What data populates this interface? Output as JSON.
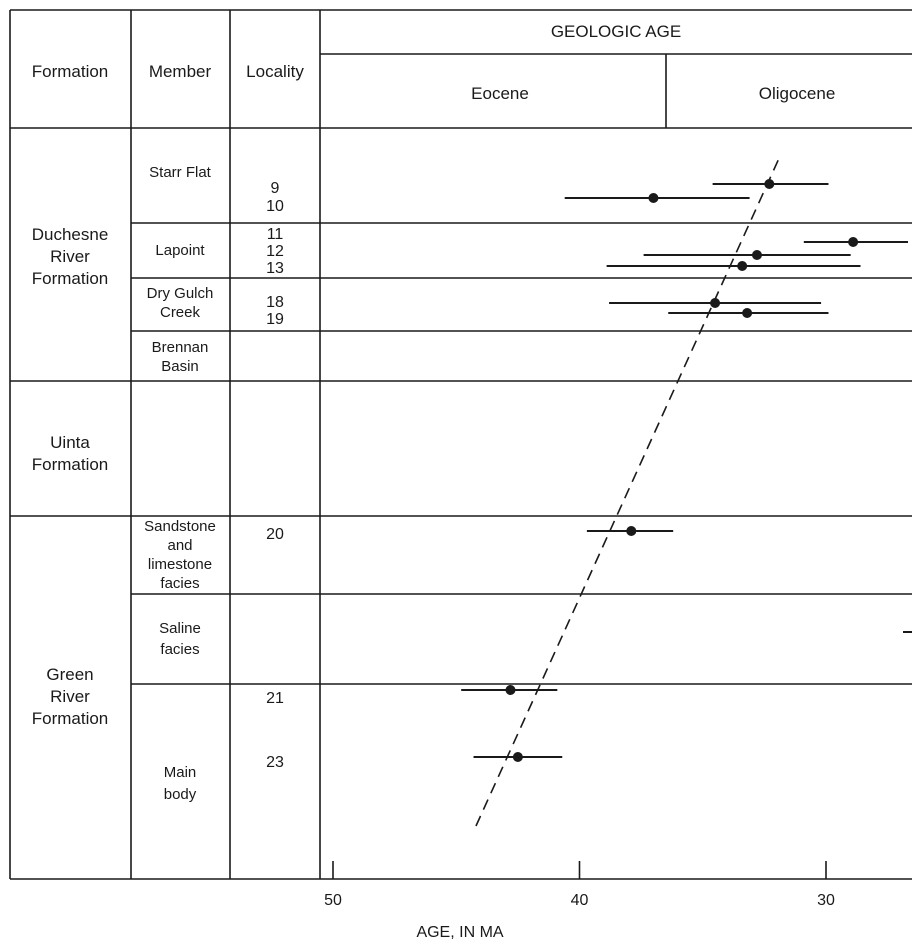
{
  "table": {
    "col_formation": "Formation",
    "col_member": "Member",
    "col_locality": "Locality",
    "geologic_age": "GEOLOGIC AGE",
    "epoch_eocene": "Eocene",
    "epoch_oligocene": "Oligocene",
    "formations": [
      {
        "lines": [
          "Duchesne",
          "River",
          "Formation"
        ]
      },
      {
        "lines": [
          "Uinta",
          "Formation"
        ]
      },
      {
        "lines": [
          "Green",
          "River",
          "Formation"
        ]
      }
    ],
    "members": [
      {
        "lines": [
          "Starr Flat"
        ]
      },
      {
        "lines": [
          "Lapoint"
        ]
      },
      {
        "lines": [
          "Dry Gulch",
          "Creek"
        ]
      },
      {
        "lines": [
          "Brennan",
          "Basin"
        ]
      },
      {
        "lines": [
          "Sandstone",
          "and",
          "limestone",
          "facies"
        ]
      },
      {
        "lines": [
          "Saline",
          "facies"
        ]
      },
      {
        "lines": [
          "Main",
          "body"
        ]
      }
    ],
    "localities": [
      "9",
      "10",
      "11",
      "12",
      "13",
      "18",
      "19",
      "20",
      "21",
      "23"
    ]
  },
  "chart_data": {
    "type": "scatter",
    "xlabel": "AGE, IN MA",
    "xlim": [
      51,
      26.5
    ],
    "xticks": [
      50,
      40,
      30
    ],
    "tick_labels": [
      "50",
      "40",
      "30"
    ],
    "series": [
      {
        "points": [
          {
            "locality": "9",
            "age": 32.3,
            "err_low": 29.9,
            "err_high": 34.6
          },
          {
            "locality": "10",
            "age": 37.0,
            "err_low": 33.1,
            "err_high": 40.6
          },
          {
            "locality": "11",
            "age": 28.9,
            "err_low": 26.6,
            "err_high": 30.9
          },
          {
            "locality": "12",
            "age": 32.8,
            "err_low": 29.0,
            "err_high": 37.4
          },
          {
            "locality": "13",
            "age": 33.4,
            "err_low": 28.6,
            "err_high": 38.9
          },
          {
            "locality": "18",
            "age": 34.5,
            "err_low": 30.2,
            "err_high": 38.8
          },
          {
            "locality": "19",
            "age": 33.2,
            "err_low": 29.9,
            "err_high": 36.4
          },
          {
            "locality": "20",
            "age": 37.9,
            "err_low": 36.2,
            "err_high": 39.7
          },
          {
            "locality": "21",
            "age": 42.8,
            "err_low": 40.9,
            "err_high": 44.8
          },
          {
            "locality": "23",
            "age": 42.5,
            "err_low": 40.7,
            "err_high": 44.3
          }
        ]
      }
    ],
    "trend_line": {
      "style": "dashed",
      "from_age": 44.2,
      "to_age": 31.9
    },
    "grid": false,
    "legend": "none"
  }
}
